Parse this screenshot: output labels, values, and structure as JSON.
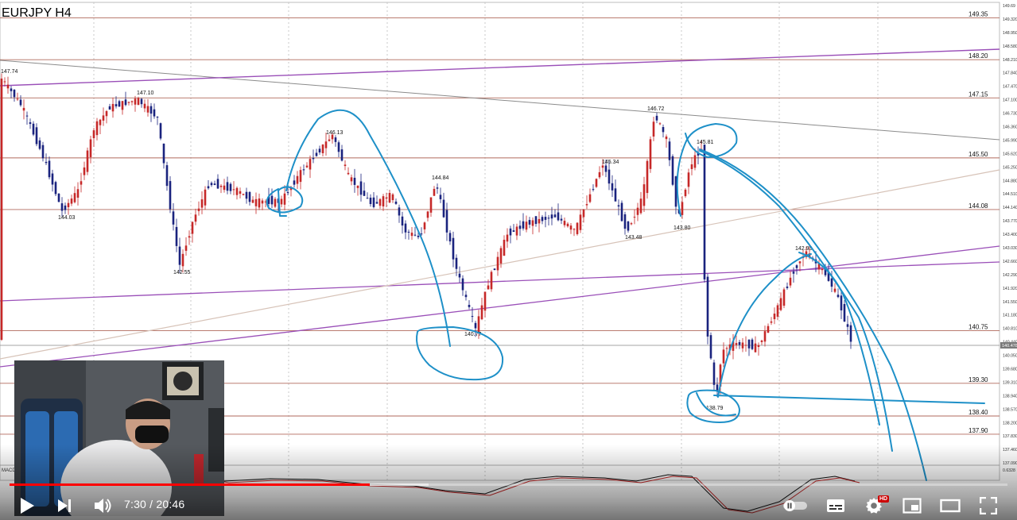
{
  "chart": {
    "symbol_title": "EURJPY H4",
    "right_axis_labels": [
      "149.69",
      "149.320",
      "148.950",
      "148.580",
      "148.210",
      "147.840",
      "147.470",
      "147.100",
      "146.730",
      "146.360",
      "145.990",
      "145.620",
      "145.250",
      "144.880",
      "144.510",
      "144.140",
      "143.770",
      "143.400",
      "143.030",
      "142.660",
      "142.290",
      "141.920",
      "141.550",
      "141.180",
      "140.810",
      "140.440",
      "140.050",
      "139.680",
      "139.310",
      "138.940",
      "138.570",
      "138.200",
      "137.830",
      "137.460",
      "137.090",
      "0.6328"
    ],
    "levels": [
      {
        "value": "149.35",
        "label": "149.35"
      },
      {
        "value": "148.20",
        "label": "148.20"
      },
      {
        "value": "147.15",
        "label": "147.15"
      },
      {
        "value": "145.50",
        "label": "145.50"
      },
      {
        "value": "144.08",
        "label": "144.08"
      },
      {
        "value": "140.75",
        "label": "140.75"
      },
      {
        "value": "139.30",
        "label": "139.30"
      },
      {
        "value": "138.40",
        "label": "138.40"
      },
      {
        "value": "137.90",
        "label": "137.90"
      }
    ],
    "price_annotations": [
      "147.74",
      "147.10",
      "144.03",
      "142.55",
      "146.13",
      "144.84",
      "140.77",
      "145.34",
      "143.48",
      "146.72",
      "145.81",
      "143.80",
      "138.79",
      "142.93"
    ],
    "current_price_tag": "140.478",
    "indicator_label": "MACD"
  },
  "player": {
    "current_time": "7:30",
    "separator": " / ",
    "duration": "20:46",
    "progress_fraction": 0.3612,
    "loaded_fraction": 0.42,
    "hd_badge": "HD",
    "accent_color": "#ff0000"
  },
  "icons": {
    "play": "play-icon",
    "next": "next-icon",
    "volume": "volume-icon",
    "autoplay": "autoplay-toggle-icon",
    "subtitles": "subtitles-icon",
    "settings": "gear-icon",
    "miniplayer": "miniplayer-icon",
    "theater": "theater-icon",
    "fullscreen": "fullscreen-icon"
  }
}
